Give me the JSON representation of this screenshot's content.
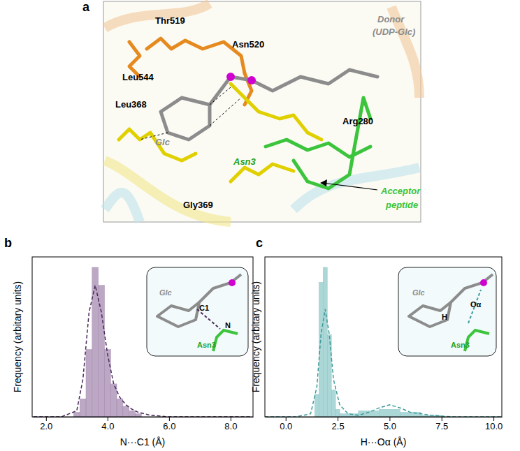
{
  "structure_panel": {
    "panel_label": "a",
    "labels": [
      {
        "text": "Thr519",
        "color": "#000000"
      },
      {
        "text": "Asn520",
        "color": "#000000"
      },
      {
        "text": "Donor",
        "color": "#8c8c8c"
      },
      {
        "text": "(UDP-Glc)",
        "color": "#8c8c8c"
      },
      {
        "text": "Leu544",
        "color": "#000000"
      },
      {
        "text": "Leu368",
        "color": "#000000"
      },
      {
        "text": "Glc",
        "color": "#8c8c8c"
      },
      {
        "text": "Arg280",
        "color": "#000000"
      },
      {
        "text": "Asn3",
        "color": "#22a322"
      },
      {
        "text": "Acceptor",
        "color": "#3cc43c"
      },
      {
        "text": "peptide",
        "color": "#3cc43c"
      },
      {
        "text": "Gly369",
        "color": "#000000"
      }
    ]
  },
  "chart_data": [
    {
      "type": "histogram",
      "panel_label": "b",
      "x_label": "N···C1 (Å)",
      "y_label": "Frequency (arbitary units)",
      "bins": [
        2.9,
        3.1,
        3.3,
        3.5,
        3.7,
        3.9,
        4.1,
        4.3,
        4.5,
        4.7,
        4.9,
        5.1
      ],
      "values": [
        0.03,
        0.12,
        0.45,
        1.0,
        0.88,
        0.45,
        0.22,
        0.12,
        0.07,
        0.04,
        0.02
      ],
      "color": "#a58bb0",
      "series": [
        {
          "type": "line",
          "color": "#4b2a5a",
          "line_style": "dashed",
          "x": [
            1.6,
            2.5,
            3.0,
            3.2,
            3.4,
            3.6,
            3.8,
            4.0,
            4.2,
            4.4,
            4.6,
            4.8,
            5.0,
            5.4,
            6.0,
            7.0,
            8.7
          ],
          "values": [
            0,
            0,
            0.04,
            0.25,
            0.7,
            0.88,
            0.7,
            0.42,
            0.22,
            0.13,
            0.08,
            0.05,
            0.03,
            0.01,
            0,
            0,
            0
          ]
        }
      ],
      "xlim": [
        1.55,
        8.73
      ],
      "xticks": [
        {
          "value": 2,
          "label": "2.0"
        },
        {
          "value": 4,
          "label": "4.0"
        },
        {
          "value": 6,
          "label": "6.0"
        },
        {
          "value": 8,
          "label": "8.0"
        }
      ],
      "ylim": [
        0,
        1.07
      ],
      "tick_labels": "x",
      "annotations": [
        "Glc",
        "C1",
        "N",
        "Asn3"
      ]
    },
    {
      "type": "histogram",
      "panel_label": "c",
      "x_label": "H···Oα (Å)",
      "y_label": "Frequency (arbitary units)",
      "bins": [
        1.4,
        1.6,
        1.8,
        2.0,
        2.2,
        2.4,
        2.6,
        3.5,
        4.5,
        5.5,
        6.5,
        7.5
      ],
      "values": [
        0.15,
        0.9,
        1.0,
        0.55,
        0.18,
        0.05,
        0.02,
        0.04,
        0.05,
        0.03,
        0.01
      ],
      "color": "#8fc9c9",
      "series": [
        {
          "type": "line",
          "color": "#3e9a9a",
          "line_style": "dashed",
          "x": [
            -1,
            0.5,
            1.2,
            1.5,
            1.7,
            1.9,
            2.1,
            2.3,
            2.6,
            3.0,
            3.5,
            4.0,
            4.5,
            5.0,
            5.5,
            6.0,
            7.0,
            8.0,
            10.4
          ],
          "values": [
            0,
            0,
            0.02,
            0.2,
            0.55,
            0.72,
            0.55,
            0.25,
            0.08,
            0.02,
            0.01,
            0.03,
            0.06,
            0.08,
            0.06,
            0.03,
            0.01,
            0,
            0
          ]
        }
      ],
      "xlim": [
        -1,
        10.4
      ],
      "xticks": [
        {
          "value": 0,
          "label": "0.0"
        },
        {
          "value": 2.5,
          "label": "2.5"
        },
        {
          "value": 5,
          "label": "5.0"
        },
        {
          "value": 7.5,
          "label": "7.5"
        },
        {
          "value": 10,
          "label": "10.0"
        }
      ],
      "ylim": [
        0,
        1.07
      ],
      "tick_labels": "x",
      "annotations": [
        "Glc",
        "H",
        "Oα",
        "Asn3"
      ]
    }
  ]
}
